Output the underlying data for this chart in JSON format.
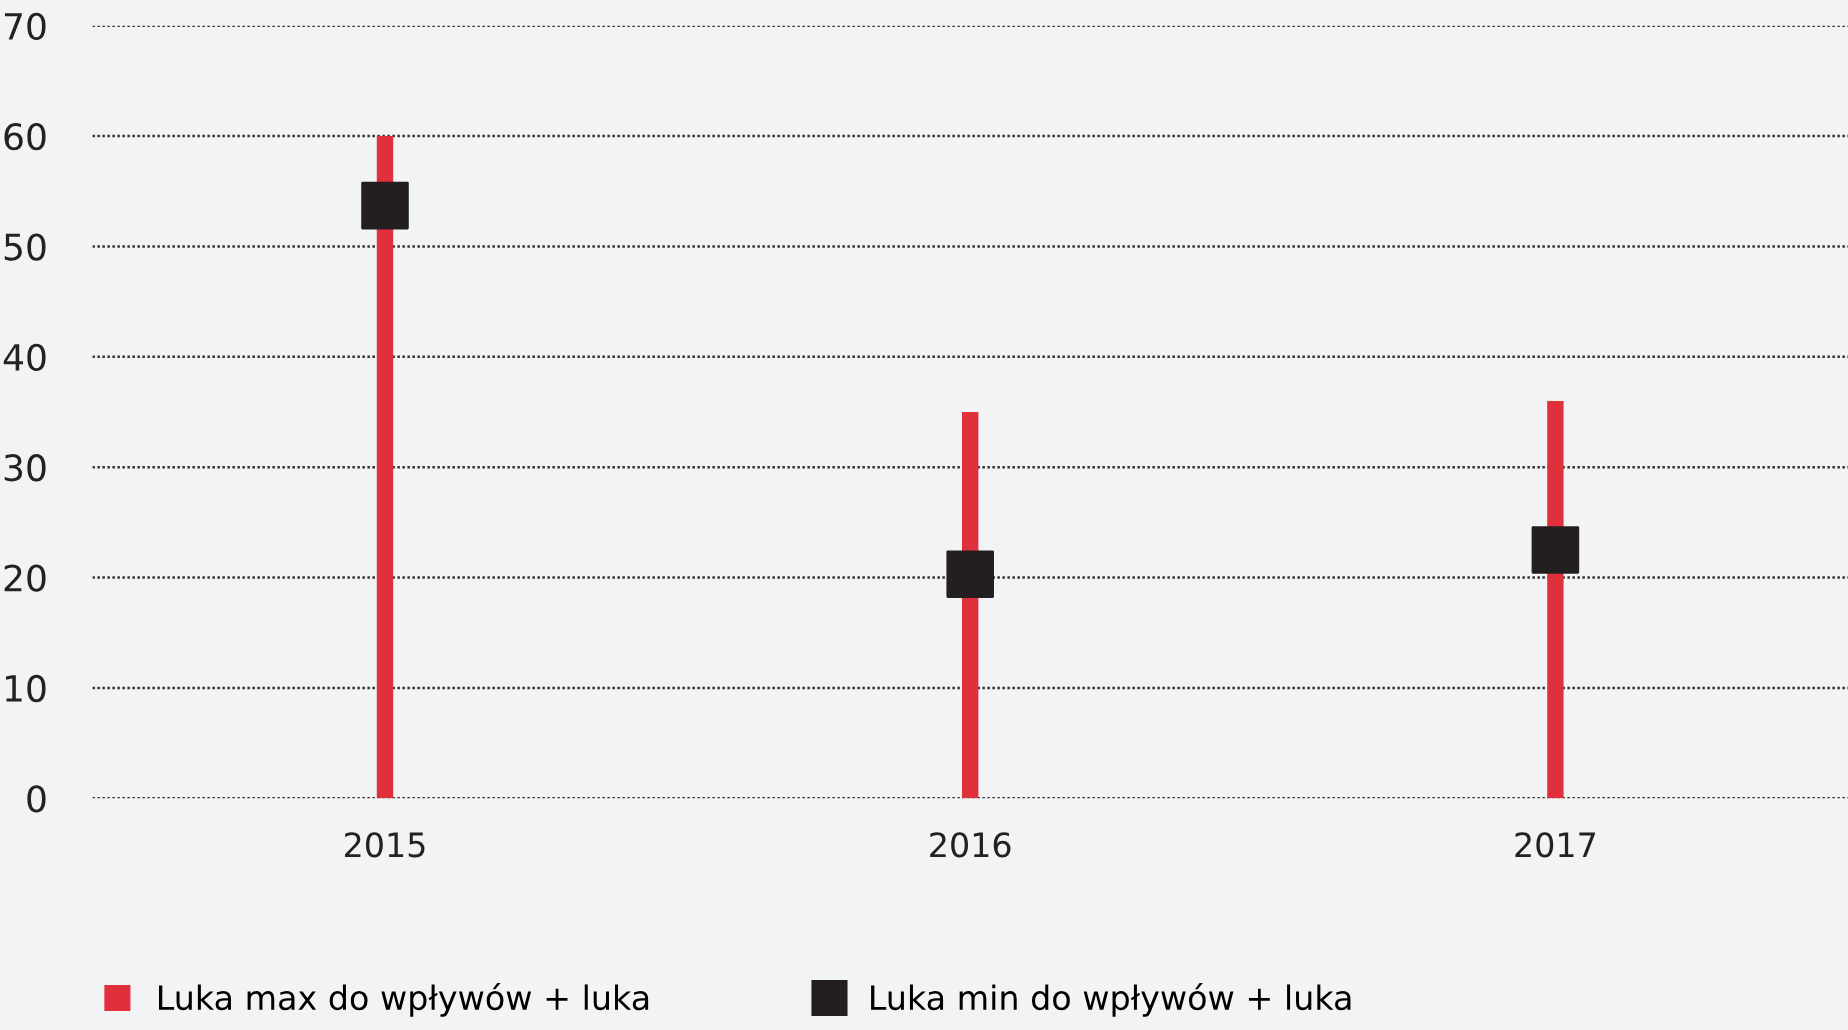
{
  "chart_data": {
    "type": "bar",
    "categories": [
      "2015",
      "2016",
      "2017"
    ],
    "series": [
      {
        "name": "Luka max do wpływów + luka",
        "color": "#e0303c",
        "values": [
          60,
          35,
          36
        ]
      },
      {
        "name": "Luka min do wpływów + luka",
        "type": "scatter",
        "color": "#231f20",
        "values": [
          53.7,
          20.3,
          22.5
        ]
      }
    ],
    "ylim": [
      0,
      70
    ],
    "yticks": [
      0,
      10,
      20,
      30,
      40,
      50,
      60,
      70
    ],
    "grid": "y",
    "legend": "bottom left",
    "marker": "square"
  }
}
